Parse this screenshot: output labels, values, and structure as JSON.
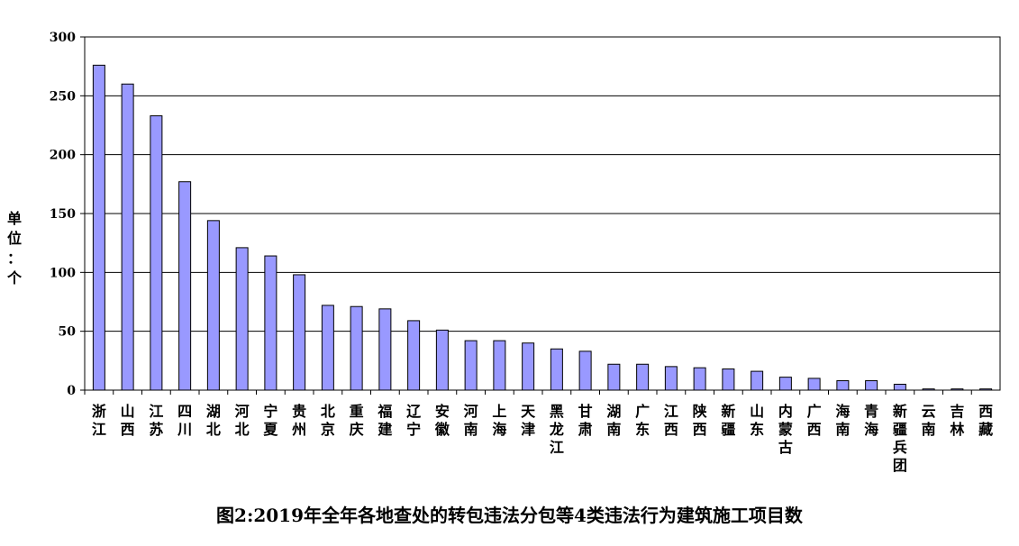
{
  "chart_data": {
    "type": "bar",
    "title": "图2:2019年全年各地查处的转包违法分包等4类违法行为建筑施工项目数",
    "ylabel": "单位：个",
    "xlabel": "",
    "ylim": [
      0,
      300
    ],
    "yticks": [
      0,
      50,
      100,
      150,
      200,
      250,
      300
    ],
    "grid": true,
    "bar_color": "#9999ff",
    "bar_edge_color": "#000000",
    "categories": [
      "浙江",
      "山西",
      "江苏",
      "四川",
      "湖北",
      "河北",
      "宁夏",
      "贵州",
      "北京",
      "重庆",
      "福建",
      "辽宁",
      "安徽",
      "河南",
      "上海",
      "天津",
      "黑龙江",
      "甘肃",
      "湖南",
      "广东",
      "江西",
      "陕西",
      "新疆",
      "山东",
      "内蒙古",
      "广西",
      "海南",
      "青海",
      "新疆兵团",
      "云南",
      "吉林",
      "西藏"
    ],
    "values": [
      276,
      260,
      233,
      177,
      144,
      121,
      114,
      98,
      72,
      71,
      69,
      59,
      51,
      42,
      42,
      40,
      35,
      33,
      22,
      22,
      20,
      19,
      18,
      16,
      11,
      10,
      8,
      8,
      5,
      1,
      1,
      1
    ]
  }
}
